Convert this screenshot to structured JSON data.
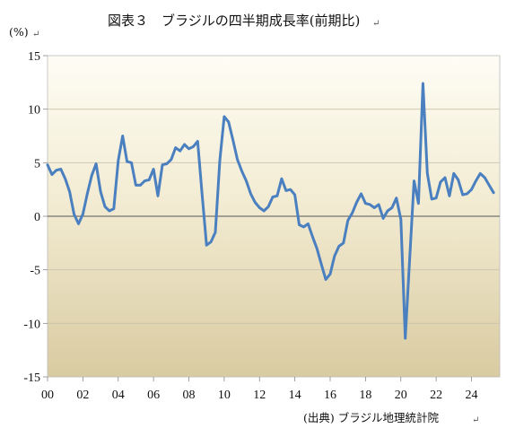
{
  "chart_data": {
    "type": "line",
    "title": "図表３　ブラジルの四半期成長率(前期比)",
    "unit_label": "(%)",
    "source": "(出典) ブラジル地理統計院",
    "ylim": [
      -15,
      15
    ],
    "yticks": [
      "15",
      "10",
      "5",
      "0",
      "-5",
      "-10",
      "-15"
    ],
    "ytick_values": [
      15,
      10,
      5,
      0,
      -5,
      -10,
      -15
    ],
    "xlim": [
      2000,
      2025.6
    ],
    "xticks": [
      "00",
      "02",
      "04",
      "06",
      "08",
      "10",
      "12",
      "14",
      "16",
      "18",
      "20",
      "22",
      "24"
    ],
    "xtick_values": [
      2000,
      2002,
      2004,
      2006,
      2008,
      2010,
      2012,
      2014,
      2016,
      2018,
      2020,
      2022,
      2024
    ],
    "grid": "horizontal",
    "line_color": "#4a7fc0",
    "series": [
      {
        "x": [
          2000.0,
          2000.25,
          2000.5,
          2000.75,
          2001.0,
          2001.25,
          2001.5,
          2001.75,
          2002.0,
          2002.25,
          2002.5,
          2002.75,
          2003.0,
          2003.25,
          2003.5,
          2003.75,
          2004.0,
          2004.25,
          2004.5,
          2004.75,
          2005.0,
          2005.25,
          2005.5,
          2005.75,
          2006.0,
          2006.25,
          2006.5,
          2006.75,
          2007.0,
          2007.25,
          2007.5,
          2007.75,
          2008.0,
          2008.25,
          2008.5,
          2008.75,
          2009.0,
          2009.25,
          2009.5,
          2009.75,
          2010.0,
          2010.25,
          2010.5,
          2010.75,
          2011.0,
          2011.25,
          2011.5,
          2011.75,
          2012.0,
          2012.25,
          2012.5,
          2012.75,
          2013.0,
          2013.25,
          2013.5,
          2013.75,
          2014.0,
          2014.25,
          2014.5,
          2014.75,
          2015.0,
          2015.25,
          2015.5,
          2015.75,
          2016.0,
          2016.25,
          2016.5,
          2016.75,
          2017.0,
          2017.25,
          2017.5,
          2017.75,
          2018.0,
          2018.25,
          2018.5,
          2018.75,
          2019.0,
          2019.25,
          2019.5,
          2019.75,
          2020.0,
          2020.25,
          2020.5,
          2020.75,
          2021.0,
          2021.25,
          2021.5,
          2021.75,
          2022.0,
          2022.25,
          2022.5,
          2022.75,
          2023.0,
          2023.25,
          2023.5,
          2023.75,
          2024.0,
          2024.25,
          2024.5,
          2024.75,
          2025.0,
          2025.25
        ],
        "values": [
          4.8,
          3.9,
          4.3,
          4.4,
          3.5,
          2.3,
          0.2,
          -0.7,
          0.2,
          2.1,
          3.8,
          4.9,
          2.3,
          0.9,
          0.5,
          0.7,
          5.2,
          7.5,
          5.1,
          5.0,
          2.9,
          2.9,
          3.3,
          3.4,
          4.4,
          1.9,
          4.8,
          4.9,
          5.3,
          6.4,
          6.1,
          6.7,
          6.3,
          6.5,
          7.0,
          2.0,
          -2.7,
          -2.4,
          -1.5,
          5.2,
          9.3,
          8.8,
          7.1,
          5.3,
          4.2,
          3.3,
          2.1,
          1.3,
          0.8,
          0.5,
          0.9,
          1.8,
          1.9,
          3.5,
          2.4,
          2.5,
          2.0,
          -0.8,
          -1.0,
          -0.7,
          -1.9,
          -3.0,
          -4.5,
          -5.9,
          -5.4,
          -3.7,
          -2.8,
          -2.5,
          -0.4,
          0.3,
          1.3,
          2.1,
          1.2,
          1.1,
          0.8,
          1.1,
          -0.2,
          0.5,
          0.8,
          1.7,
          -0.3,
          -11.4,
          -4.0,
          3.3,
          1.2,
          12.4,
          4.0,
          1.6,
          1.7,
          3.2,
          3.6,
          1.9,
          4.0,
          3.4,
          2.0,
          2.1,
          2.5,
          3.3,
          4.0,
          3.6,
          2.9,
          2.2
        ]
      }
    ]
  }
}
